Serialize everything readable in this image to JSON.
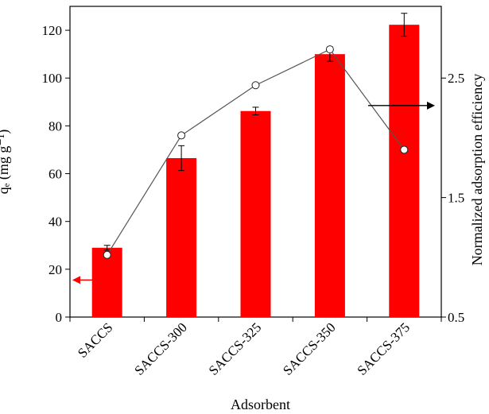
{
  "chart_data": {
    "type": "bar",
    "categories": [
      "SACCS",
      "SACCS-300",
      "SACCS-325",
      "SACCS-350",
      "SACCS-375"
    ],
    "xlabel": "Adsorbent",
    "ylabel": "qₑ (mg g⁻¹)",
    "y2label": "Normalized adsorption efficiency",
    "ylim": [
      0,
      130
    ],
    "yticks": [
      0,
      20,
      40,
      60,
      80,
      100,
      120
    ],
    "y2lim": [
      0.5,
      3.1
    ],
    "y2ticks": [
      "0.5",
      "1.5",
      "2.5"
    ],
    "grid": false,
    "series": [
      {
        "type": "bar",
        "axis": "left",
        "values": [
          29,
          66.5,
          86.2,
          110,
          122.3
        ],
        "errors": [
          1,
          5.2,
          1.6,
          3,
          4.8
        ],
        "color": "#ff0000"
      },
      {
        "type": "line",
        "axis": "right",
        "marker": "open-circle",
        "values": [
          1.02,
          2.02,
          2.44,
          2.74,
          1.9
        ],
        "color": "#555555"
      }
    ],
    "annotations": [
      {
        "type": "arrow",
        "direction": "left",
        "points_to": "left-axis",
        "color": "#ff0000"
      },
      {
        "type": "arrow",
        "direction": "right",
        "points_to": "right-axis",
        "color": "#000000"
      }
    ]
  }
}
